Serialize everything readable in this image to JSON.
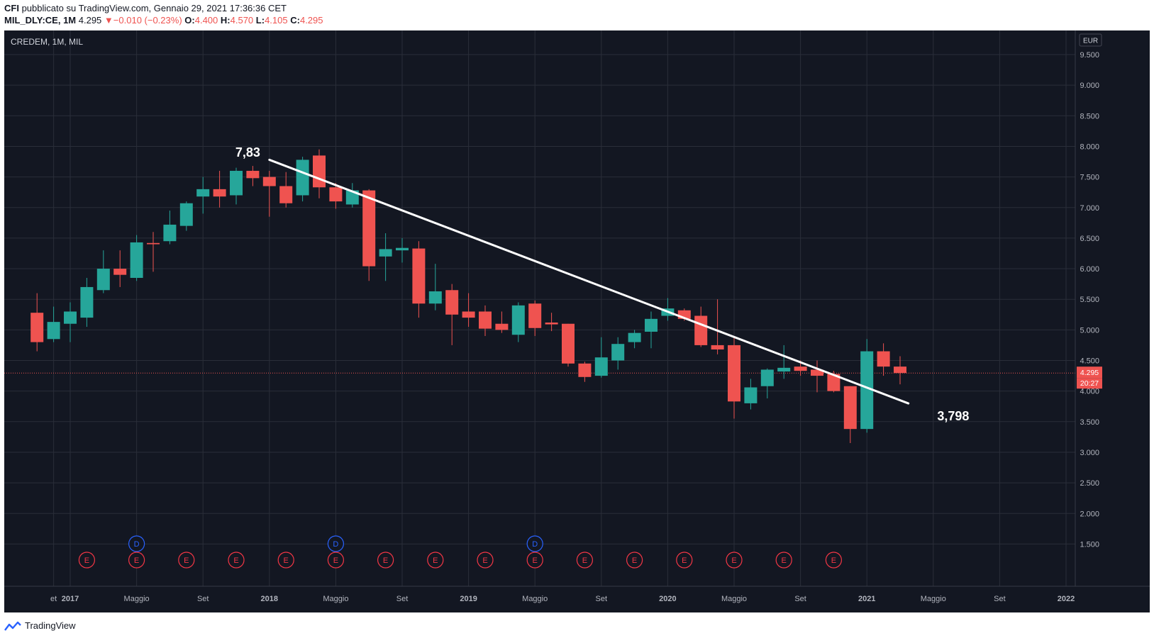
{
  "header": {
    "author": "CFI",
    "published_on": "pubblicato su TradingView.com, Gennaio 29, 2021 17:36:36 CET",
    "symbol": "MIL_DLY:CE, 1M",
    "last": "4.295",
    "change": "−0.010 (−0.23%)",
    "open_label": "O:",
    "open": "4.400",
    "high_label": "H:",
    "high": "4.570",
    "low_label": "L:",
    "low": "4.105",
    "close_label": "C:",
    "close": "4.295"
  },
  "chart_title": "CREDEM, 1M, MIL",
  "currency": "EUR",
  "price_tag": "4.295",
  "countdown_tag": "20:27",
  "footer_brand": "TradingView",
  "colors": {
    "background": "#131722",
    "grid": "#2a2e39",
    "up": "#26a69a",
    "down": "#ef5350",
    "trendline": "#ffffff",
    "axis_text": "#b2b5be"
  },
  "chart_data": {
    "type": "candlestick",
    "title": "CREDEM, 1M, MIL",
    "y_ticks": [
      "1.500",
      "2.000",
      "2.500",
      "3.000",
      "3.500",
      "4.000",
      "4.500",
      "5.000",
      "5.500",
      "6.000",
      "6.500",
      "7.000",
      "7.500",
      "8.000",
      "8.500",
      "9.000",
      "9.500"
    ],
    "ylim": [
      1.2,
      9.9
    ],
    "x_ticks": [
      {
        "label": "et",
        "month_index": -1
      },
      {
        "label": "2017",
        "month_index": 0
      },
      {
        "label": "Maggio",
        "month_index": 4
      },
      {
        "label": "Set",
        "month_index": 8
      },
      {
        "label": "2018",
        "month_index": 12
      },
      {
        "label": "Maggio",
        "month_index": 16
      },
      {
        "label": "Set",
        "month_index": 20
      },
      {
        "label": "2019",
        "month_index": 24
      },
      {
        "label": "Maggio",
        "month_index": 28
      },
      {
        "label": "Set",
        "month_index": 32
      },
      {
        "label": "2020",
        "month_index": 36
      },
      {
        "label": "Maggio",
        "month_index": 40
      },
      {
        "label": "Set",
        "month_index": 44
      },
      {
        "label": "2021",
        "month_index": 48
      },
      {
        "label": "Maggio",
        "month_index": 52
      },
      {
        "label": "Set",
        "month_index": 56
      },
      {
        "label": "2022",
        "month_index": 60
      }
    ],
    "candles": [
      {
        "o": 5.28,
        "h": 5.6,
        "l": 4.65,
        "c": 4.8
      },
      {
        "o": 4.85,
        "h": 5.38,
        "l": 4.8,
        "c": 5.13
      },
      {
        "o": 5.1,
        "h": 5.45,
        "l": 4.8,
        "c": 5.3
      },
      {
        "o": 5.2,
        "h": 5.85,
        "l": 5.05,
        "c": 5.7
      },
      {
        "o": 5.65,
        "h": 6.3,
        "l": 5.6,
        "c": 6.0
      },
      {
        "o": 6.0,
        "h": 6.3,
        "l": 5.7,
        "c": 5.9
      },
      {
        "o": 5.85,
        "h": 6.55,
        "l": 5.8,
        "c": 6.43
      },
      {
        "o": 6.42,
        "h": 6.6,
        "l": 5.95,
        "c": 6.4
      },
      {
        "o": 6.45,
        "h": 6.95,
        "l": 6.4,
        "c": 6.72
      },
      {
        "o": 6.7,
        "h": 7.1,
        "l": 6.62,
        "c": 7.07
      },
      {
        "o": 7.18,
        "h": 7.5,
        "l": 6.9,
        "c": 7.3
      },
      {
        "o": 7.3,
        "h": 7.6,
        "l": 7.0,
        "c": 7.18
      },
      {
        "o": 7.2,
        "h": 7.65,
        "l": 7.05,
        "c": 7.6
      },
      {
        "o": 7.6,
        "h": 7.68,
        "l": 7.35,
        "c": 7.48
      },
      {
        "o": 7.5,
        "h": 7.6,
        "l": 6.85,
        "c": 7.35
      },
      {
        "o": 7.35,
        "h": 7.58,
        "l": 7.0,
        "c": 7.07
      },
      {
        "o": 7.2,
        "h": 7.83,
        "l": 7.1,
        "c": 7.78
      },
      {
        "o": 7.85,
        "h": 7.95,
        "l": 7.15,
        "c": 7.33
      },
      {
        "o": 7.33,
        "h": 7.4,
        "l": 6.98,
        "c": 7.1
      },
      {
        "o": 7.05,
        "h": 7.4,
        "l": 7.0,
        "c": 7.28
      },
      {
        "o": 7.28,
        "h": 7.3,
        "l": 5.8,
        "c": 6.04
      },
      {
        "o": 6.2,
        "h": 6.58,
        "l": 5.8,
        "c": 6.32
      },
      {
        "o": 6.3,
        "h": 6.5,
        "l": 6.1,
        "c": 6.34
      },
      {
        "o": 6.33,
        "h": 6.45,
        "l": 5.2,
        "c": 5.43
      },
      {
        "o": 5.43,
        "h": 6.08,
        "l": 5.32,
        "c": 5.63
      },
      {
        "o": 5.65,
        "h": 5.75,
        "l": 4.75,
        "c": 5.25
      },
      {
        "o": 5.3,
        "h": 5.6,
        "l": 5.05,
        "c": 5.2
      },
      {
        "o": 5.3,
        "h": 5.4,
        "l": 4.9,
        "c": 5.02
      },
      {
        "o": 5.1,
        "h": 5.3,
        "l": 4.95,
        "c": 5.0
      },
      {
        "o": 4.92,
        "h": 5.45,
        "l": 4.8,
        "c": 5.4
      },
      {
        "o": 5.43,
        "h": 5.48,
        "l": 4.9,
        "c": 5.03
      },
      {
        "o": 5.12,
        "h": 5.28,
        "l": 4.98,
        "c": 5.09
      },
      {
        "o": 5.1,
        "h": 5.1,
        "l": 4.4,
        "c": 4.45
      },
      {
        "o": 4.45,
        "h": 4.48,
        "l": 4.15,
        "c": 4.23
      },
      {
        "o": 4.25,
        "h": 4.88,
        "l": 4.22,
        "c": 4.55
      },
      {
        "o": 4.5,
        "h": 4.88,
        "l": 4.35,
        "c": 4.77
      },
      {
        "o": 4.8,
        "h": 5.0,
        "l": 4.7,
        "c": 4.95
      },
      {
        "o": 4.97,
        "h": 5.3,
        "l": 4.7,
        "c": 5.18
      },
      {
        "o": 5.23,
        "h": 5.52,
        "l": 5.15,
        "c": 5.35
      },
      {
        "o": 5.32,
        "h": 5.35,
        "l": 5.15,
        "c": 5.18
      },
      {
        "o": 5.23,
        "h": 5.38,
        "l": 4.72,
        "c": 4.75
      },
      {
        "o": 4.75,
        "h": 5.5,
        "l": 4.6,
        "c": 4.68
      },
      {
        "o": 4.75,
        "h": 4.9,
        "l": 3.55,
        "c": 3.83
      },
      {
        "o": 3.8,
        "h": 4.2,
        "l": 3.7,
        "c": 4.06
      },
      {
        "o": 4.08,
        "h": 4.37,
        "l": 3.88,
        "c": 4.35
      },
      {
        "o": 4.32,
        "h": 4.75,
        "l": 4.2,
        "c": 4.38
      },
      {
        "o": 4.4,
        "h": 4.5,
        "l": 4.25,
        "c": 4.33
      },
      {
        "o": 4.35,
        "h": 4.5,
        "l": 3.98,
        "c": 4.25
      },
      {
        "o": 4.28,
        "h": 4.33,
        "l": 3.98,
        "c": 4.0
      },
      {
        "o": 4.08,
        "h": 4.08,
        "l": 3.15,
        "c": 3.38
      },
      {
        "o": 3.38,
        "h": 4.85,
        "l": 3.32,
        "c": 4.65
      },
      {
        "o": 4.65,
        "h": 4.78,
        "l": 4.25,
        "c": 4.4
      },
      {
        "o": 4.4,
        "h": 4.57,
        "l": 4.11,
        "c": 4.295
      }
    ],
    "candles_start_month_index": -2,
    "last_price": 4.295,
    "trendline": {
      "from": {
        "month_index": 12,
        "price": 7.78
      },
      "to": {
        "month_index": 50.5,
        "price": 3.798
      }
    },
    "annotations": [
      {
        "text": "7,83",
        "month_index": 10.7,
        "price": 7.83
      },
      {
        "text": "3,798",
        "month_index": 53.2,
        "price": 3.52
      }
    ],
    "event_markers": {
      "dividends": [
        {
          "label": "D",
          "month_index": 4
        },
        {
          "label": "D",
          "month_index": 16
        },
        {
          "label": "D",
          "month_index": 28
        }
      ],
      "earnings": [
        {
          "label": "E",
          "month_index": 1
        },
        {
          "label": "E",
          "month_index": 4
        },
        {
          "label": "E",
          "month_index": 7
        },
        {
          "label": "E",
          "month_index": 10
        },
        {
          "label": "E",
          "month_index": 13
        },
        {
          "label": "E",
          "month_index": 16
        },
        {
          "label": "E",
          "month_index": 19
        },
        {
          "label": "E",
          "month_index": 22
        },
        {
          "label": "E",
          "month_index": 25
        },
        {
          "label": "E",
          "month_index": 28
        },
        {
          "label": "E",
          "month_index": 31
        },
        {
          "label": "E",
          "month_index": 34
        },
        {
          "label": "E",
          "month_index": 37
        },
        {
          "label": "E",
          "month_index": 40
        },
        {
          "label": "E",
          "month_index": 43
        },
        {
          "label": "E",
          "month_index": 46
        }
      ]
    }
  }
}
